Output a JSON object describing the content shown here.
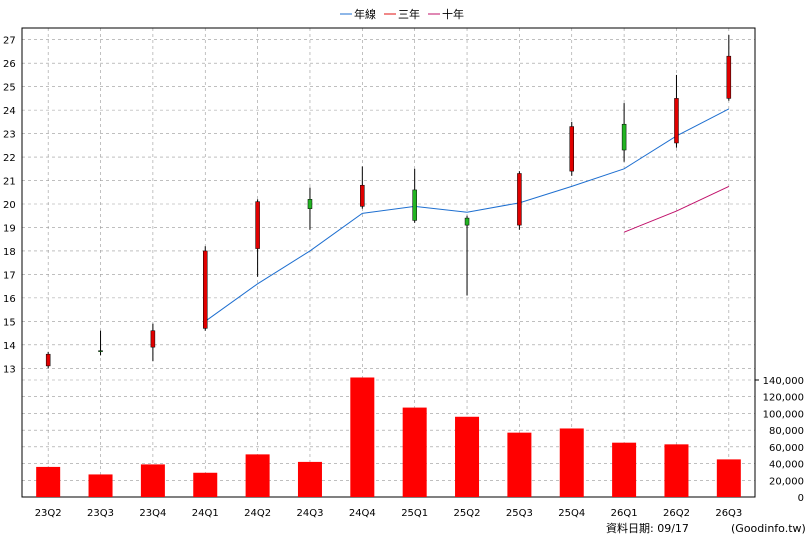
{
  "chart_data": {
    "type": "candlestick+bar",
    "legend": [
      {
        "name": "年線",
        "color": "#1e6fd0"
      },
      {
        "name": "三年",
        "color": "#e01010"
      },
      {
        "name": "十年",
        "color": "#c0106a"
      }
    ],
    "categories": [
      "23Q2",
      "23Q3",
      "23Q4",
      "24Q1",
      "24Q2",
      "24Q3",
      "24Q4",
      "25Q1",
      "25Q2",
      "25Q3",
      "25Q4",
      "26Q1",
      "26Q2",
      "26Q3"
    ],
    "price_axis": {
      "ylim": [
        12.5,
        27.5
      ],
      "ticks": [
        13,
        14,
        15,
        16,
        17,
        18,
        19,
        20,
        21,
        22,
        23,
        24,
        25,
        26,
        27
      ]
    },
    "volume_axis": {
      "ylim": [
        0,
        140000
      ],
      "tick_labels": [
        "0",
        "20,000",
        "40,000",
        "60,000",
        "80,000",
        "100,000",
        "120,000",
        "140,000"
      ],
      "tick_values": [
        0,
        20000,
        40000,
        60000,
        80000,
        100000,
        120000,
        140000
      ]
    },
    "candles": [
      {
        "q": "23Q2",
        "open": 13.6,
        "high": 13.7,
        "low": 13.0,
        "close": 13.1
      },
      {
        "q": "23Q3",
        "open": 13.75,
        "high": 14.6,
        "low": 13.55,
        "close": 13.75
      },
      {
        "q": "23Q4",
        "open": 14.6,
        "high": 14.9,
        "low": 13.3,
        "close": 13.9
      },
      {
        "q": "24Q1",
        "open": 18.0,
        "high": 18.2,
        "low": 14.6,
        "close": 14.7
      },
      {
        "q": "24Q2",
        "open": 20.1,
        "high": 20.2,
        "low": 16.9,
        "close": 18.1
      },
      {
        "q": "24Q3",
        "open": 19.8,
        "high": 20.7,
        "low": 18.9,
        "close": 20.2
      },
      {
        "q": "24Q4",
        "open": 20.8,
        "high": 21.6,
        "low": 19.8,
        "close": 19.9
      },
      {
        "q": "25Q1",
        "open": 19.3,
        "high": 21.5,
        "low": 19.2,
        "close": 20.6
      },
      {
        "q": "25Q2",
        "open": 19.1,
        "high": 19.5,
        "low": 16.1,
        "close": 19.4
      },
      {
        "q": "25Q3",
        "open": 21.3,
        "high": 21.4,
        "low": 18.9,
        "close": 19.1
      },
      {
        "q": "25Q4",
        "open": 23.3,
        "high": 23.5,
        "low": 21.2,
        "close": 21.4
      },
      {
        "q": "26Q1",
        "open": 22.3,
        "high": 24.3,
        "low": 21.8,
        "close": 23.4
      },
      {
        "q": "26Q2",
        "open": 24.5,
        "high": 25.5,
        "low": 22.4,
        "close": 22.6
      },
      {
        "q": "26Q3",
        "open": 26.3,
        "high": 27.2,
        "low": 24.4,
        "close": 24.5
      }
    ],
    "line_year": [
      null,
      null,
      null,
      15.0,
      16.6,
      18.0,
      19.6,
      19.9,
      19.65,
      20.05,
      20.75,
      21.5,
      22.9,
      24.05
    ],
    "line_three_year": [
      null,
      null,
      null,
      null,
      null,
      null,
      null,
      null,
      null,
      null,
      null,
      18.8,
      19.7,
      20.75
    ],
    "line_ten_year": [],
    "volume": [
      36000,
      27000,
      39000,
      29000,
      51000,
      42000,
      143000,
      107000,
      96000,
      77000,
      82000,
      65000,
      63000,
      45000
    ],
    "grid": true,
    "legend_position": "top-center"
  },
  "footer": {
    "date_text": "資料日期: 09/17",
    "source_text": "(Goodinfo.tw)"
  },
  "colors": {
    "up": "#e00000",
    "down": "#22b422",
    "volume": "#ff0000",
    "grid": "#999999"
  }
}
